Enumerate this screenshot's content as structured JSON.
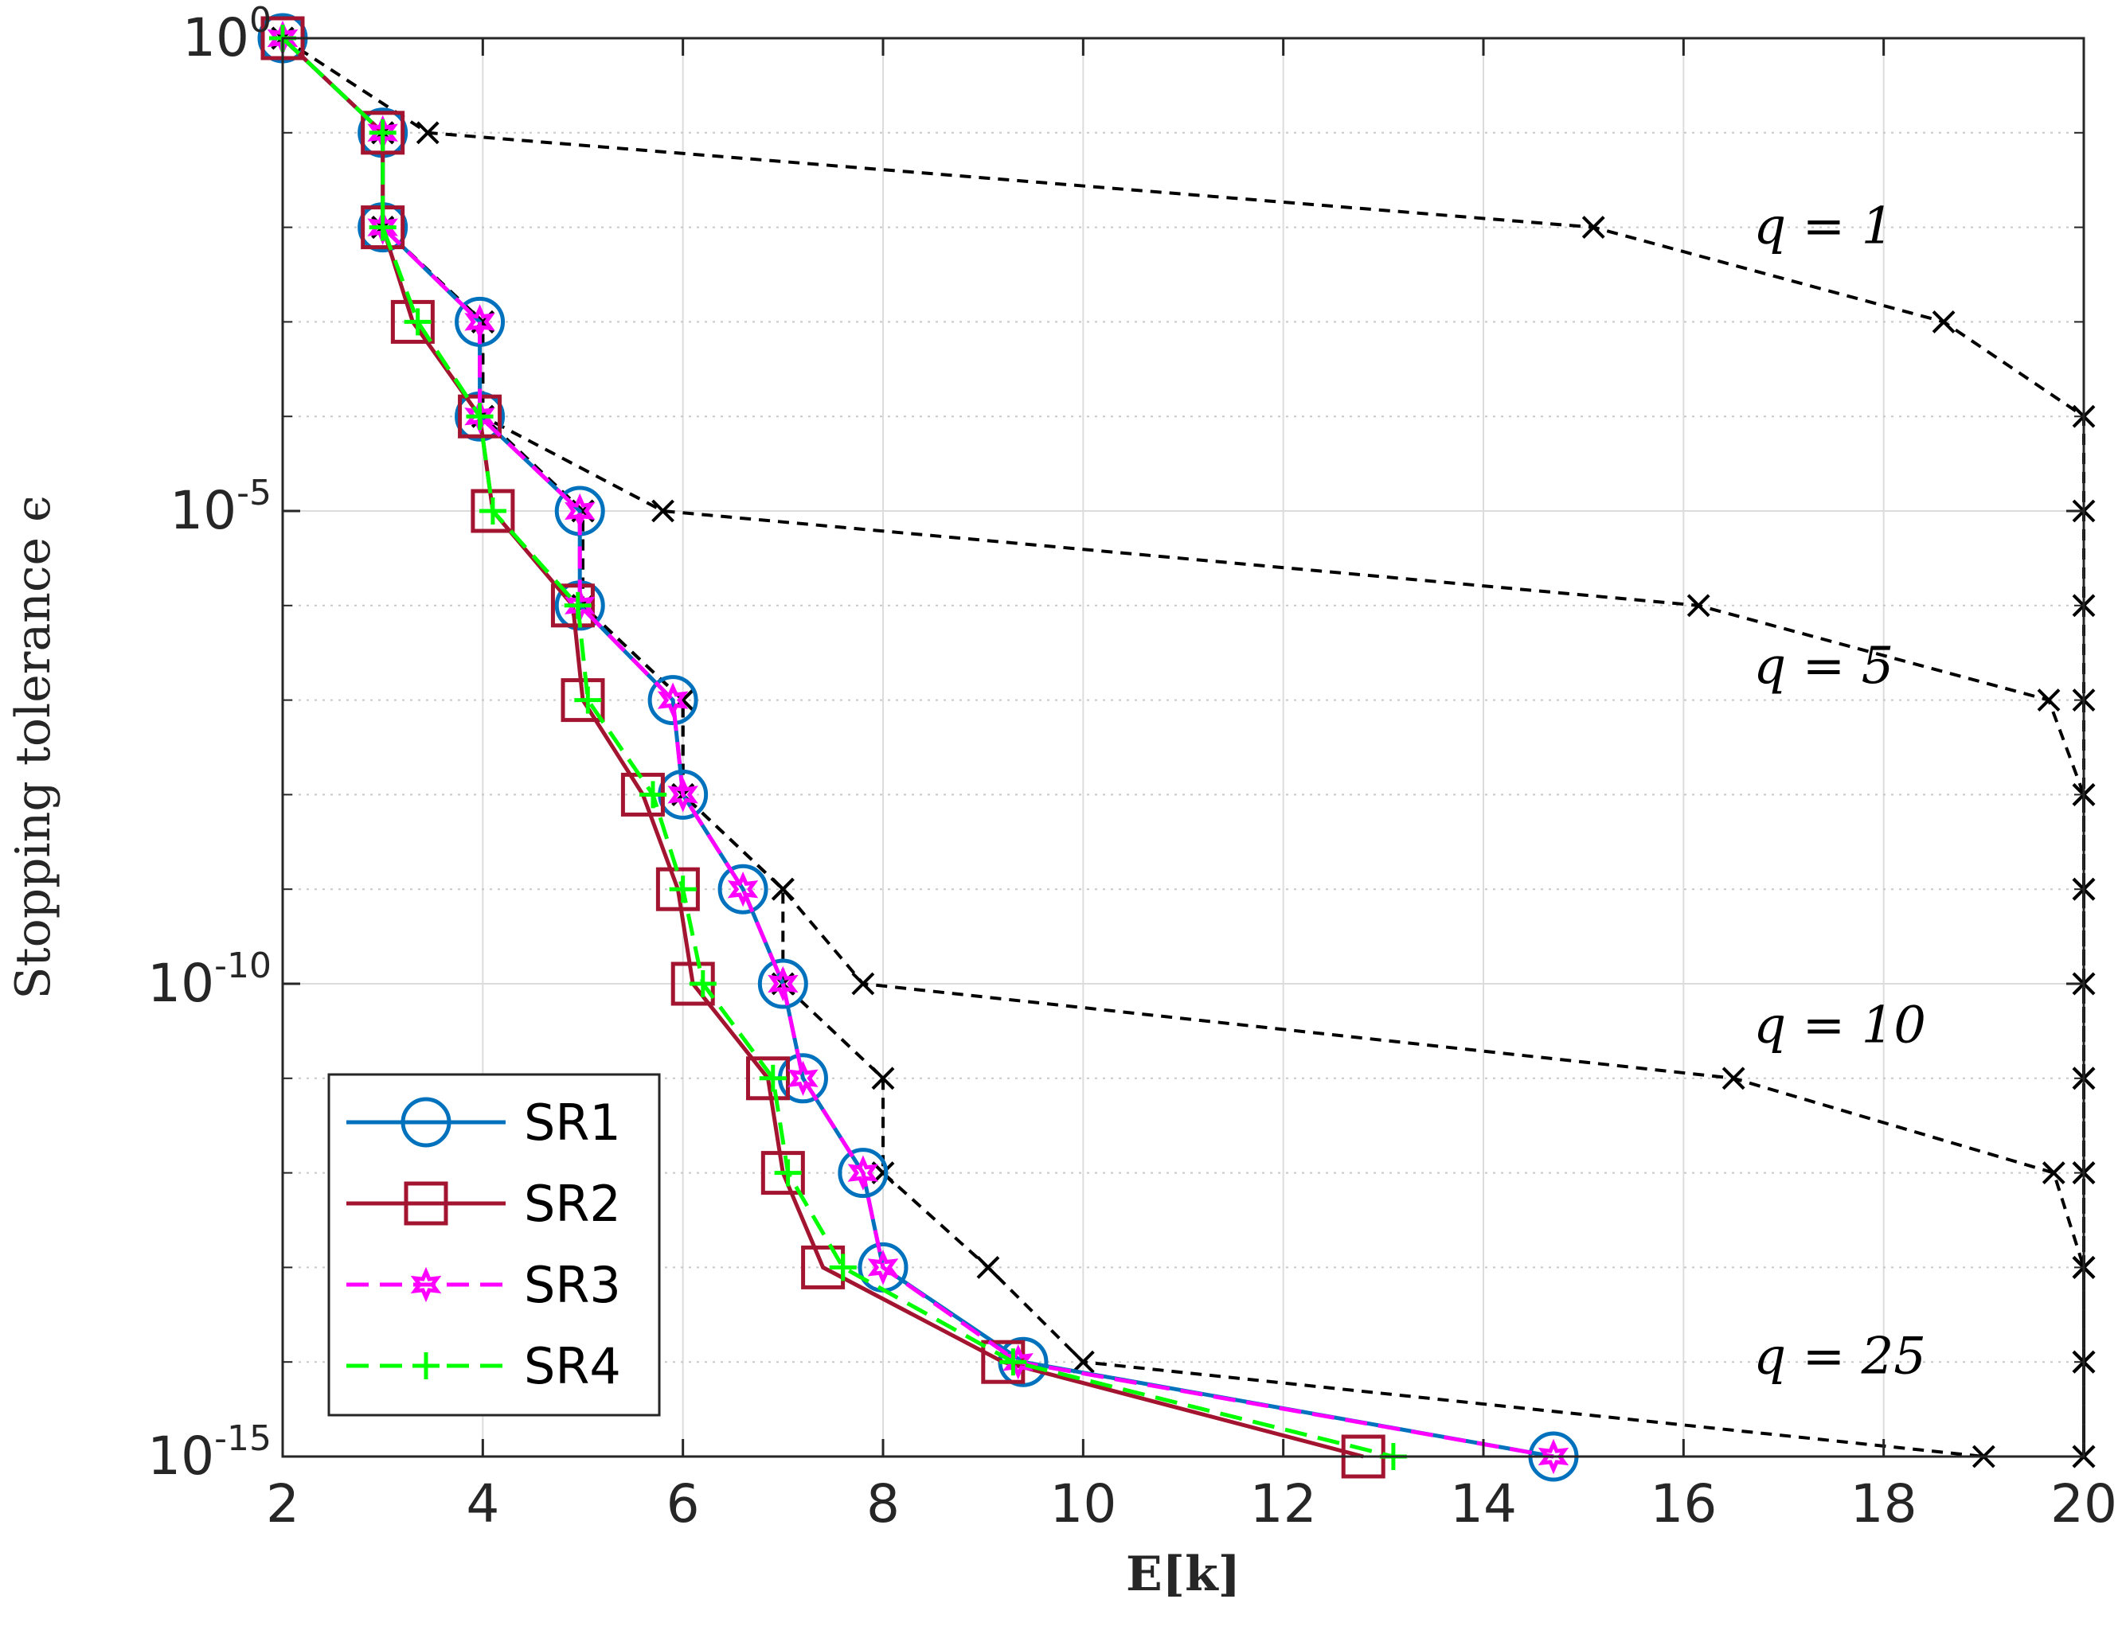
{
  "chart_data": {
    "type": "line",
    "xlabel": "E[k]",
    "ylabel": "Stopping tolerance ϵ",
    "xlim": [
      2,
      20
    ],
    "ylim_exp": [
      -15,
      0
    ],
    "y_scale": "log10",
    "grid": true,
    "legend_placement": "bottom-left",
    "x_ticks": [
      "2",
      "4",
      "6",
      "8",
      "10",
      "12",
      "14",
      "16",
      "18",
      "20"
    ],
    "x_tick_values": [
      2,
      4,
      6,
      8,
      10,
      12,
      14,
      16,
      18,
      20
    ],
    "y_ticks": [
      {
        "base": "10",
        "exp": "0",
        "value": 0
      },
      {
        "base": "10",
        "exp": "-5",
        "value": -5
      },
      {
        "base": "10",
        "exp": "-10",
        "value": -10
      },
      {
        "base": "10",
        "exp": "-15",
        "value": -15
      }
    ],
    "y_minor_exps": [
      -1,
      -2,
      -3,
      -4,
      -6,
      -7,
      -8,
      -9,
      -11,
      -12,
      -13,
      -14
    ],
    "series": [
      {
        "name": "SR1",
        "color": "#0072BD",
        "dash": "solid",
        "marker": "circle",
        "x": [
          2,
          3,
          3,
          3.97,
          3.97,
          4.97,
          4.97,
          5.9,
          6.0,
          6.6,
          7.0,
          7.2,
          7.8,
          8.0,
          9.4,
          14.7
        ],
        "y": [
          0,
          -1,
          -2,
          -3,
          -4,
          -5,
          -6,
          -7,
          -8,
          -9,
          -10,
          -11,
          -12,
          -13,
          -14,
          -15
        ]
      },
      {
        "name": "SR2",
        "color": "#A2142F",
        "dash": "solid",
        "marker": "square",
        "x": [
          2,
          3,
          3,
          3.3,
          3.97,
          4.1,
          4.9,
          5.0,
          5.6,
          5.95,
          6.1,
          6.85,
          7.0,
          7.4,
          9.2,
          12.8
        ],
        "y": [
          0,
          -1,
          -2,
          -3,
          -4,
          -5,
          -6,
          -7,
          -8,
          -9,
          -10,
          -11,
          -12,
          -13,
          -14,
          -15
        ]
      },
      {
        "name": "SR3",
        "color": "#FF00FF",
        "dash": "dashed",
        "marker": "hexagram",
        "x": [
          2,
          3,
          3,
          3.97,
          3.97,
          4.97,
          4.97,
          5.9,
          6.0,
          6.6,
          7.0,
          7.2,
          7.8,
          8.0,
          9.35,
          14.7
        ],
        "y": [
          0,
          -1,
          -2,
          -3,
          -4,
          -5,
          -6,
          -7,
          -8,
          -9,
          -10,
          -11,
          -12,
          -13,
          -14,
          -15
        ]
      },
      {
        "name": "SR4",
        "color": "#00FF00",
        "dash": "dashed",
        "marker": "plus",
        "x": [
          2,
          3,
          3,
          3.35,
          3.97,
          4.1,
          4.95,
          5.05,
          5.7,
          6.0,
          6.2,
          6.9,
          7.05,
          7.6,
          9.3,
          13.1
        ],
        "y": [
          0,
          -1,
          -2,
          -3,
          -4,
          -5,
          -6,
          -7,
          -8,
          -9,
          -10,
          -11,
          -12,
          -13,
          -14,
          -15
        ]
      }
    ],
    "reference_curves": [
      {
        "name": "q = 1",
        "label_x": 16.7,
        "label_y": -2.0,
        "x": [
          2,
          3.45,
          15.1,
          18.6,
          20,
          20,
          20,
          20,
          20,
          20,
          20,
          20,
          20,
          20,
          20,
          20
        ],
        "y": [
          0,
          -1,
          -2,
          -3,
          -4,
          -5,
          -6,
          -7,
          -8,
          -9,
          -10,
          -11,
          -12,
          -13,
          -14,
          -15
        ]
      },
      {
        "name": "q = 5",
        "label_x": 16.7,
        "label_y": -6.65,
        "x": [
          2,
          3,
          3,
          4,
          4,
          5.8,
          16.15,
          19.65,
          20,
          20,
          20,
          20,
          20,
          20,
          20,
          20
        ],
        "y": [
          0,
          -1,
          -2,
          -3,
          -4,
          -5,
          -6,
          -7,
          -8,
          -9,
          -10,
          -11,
          -12,
          -13,
          -14,
          -15
        ]
      },
      {
        "name": "q = 10",
        "label_x": 16.7,
        "label_y": -10.45,
        "x": [
          2,
          3,
          3,
          4,
          4,
          5,
          5,
          6,
          6,
          7,
          7.8,
          16.5,
          19.7,
          20,
          20,
          20
        ],
        "y": [
          0,
          -1,
          -2,
          -3,
          -4,
          -5,
          -6,
          -7,
          -8,
          -9,
          -10,
          -11,
          -12,
          -13,
          -14,
          -15
        ]
      },
      {
        "name": "q = 25",
        "label_x": 16.7,
        "label_y": -13.95,
        "x": [
          2,
          3,
          3,
          4,
          4,
          5,
          5,
          6,
          6,
          7,
          7,
          8,
          8,
          9.05,
          10.0,
          19.0
        ],
        "y": [
          0,
          -1,
          -2,
          -3,
          -4,
          -5,
          -6,
          -7,
          -8,
          -9,
          -10,
          -11,
          -12,
          -13,
          -14,
          -15
        ]
      }
    ]
  }
}
